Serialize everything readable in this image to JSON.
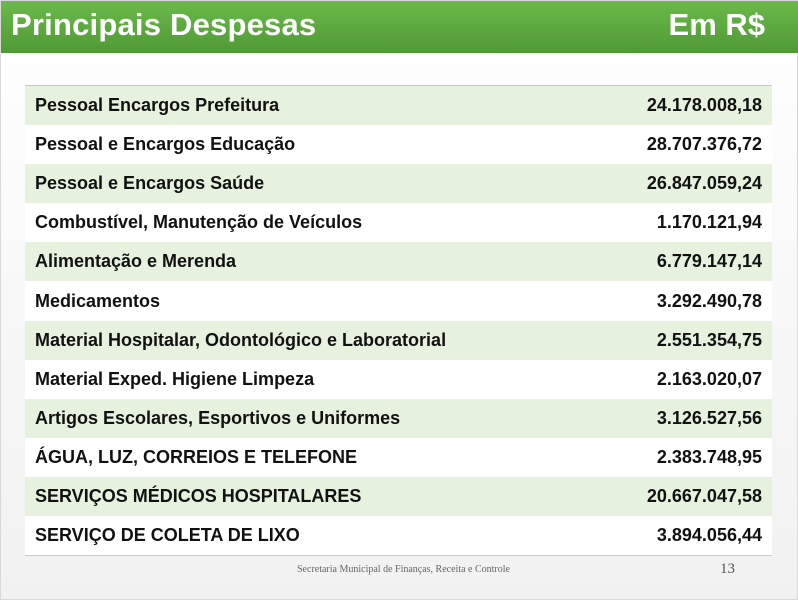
{
  "header": {
    "title": "Principais Despesas",
    "currency": "Em R$"
  },
  "rows": [
    {
      "label": "Pessoal Encargos Prefeitura",
      "value": "24.178.008,18"
    },
    {
      "label": "Pessoal e Encargos  Educação",
      "value": "28.707.376,72"
    },
    {
      "label": "Pessoal e Encargos Saúde",
      "value": "26.847.059,24"
    },
    {
      "label": "Combustível, Manutenção de Veículos",
      "value": "1.170.121,94"
    },
    {
      "label": "Alimentação e Merenda",
      "value": "6.779.147,14"
    },
    {
      "label": "Medicamentos",
      "value": "3.292.490,78"
    },
    {
      "label": "Material Hospitalar, Odontológico e Laboratorial",
      "value": "2.551.354,75"
    },
    {
      "label": "Material Exped. Higiene Limpeza",
      "value": "2.163.020,07"
    },
    {
      "label": "Artigos Escolares, Esportivos e Uniformes",
      "value": "3.126.527,56"
    },
    {
      "label": "ÁGUA, LUZ, CORREIOS E TELEFONE",
      "value": "2.383.748,95"
    },
    {
      "label": "SERVIÇOS MÉDICOS HOSPITALARES",
      "value": "20.667.047,58"
    },
    {
      "label": "SERVIÇO DE COLETA DE LIXO",
      "value": "3.894.056,44"
    }
  ],
  "footer": {
    "text": "Secretaria Municipal de Finanças, Receita e Controle",
    "page_number": "13"
  },
  "colors": {
    "header_green": "#5aa83e",
    "row_stripe": "#e6f2de"
  }
}
